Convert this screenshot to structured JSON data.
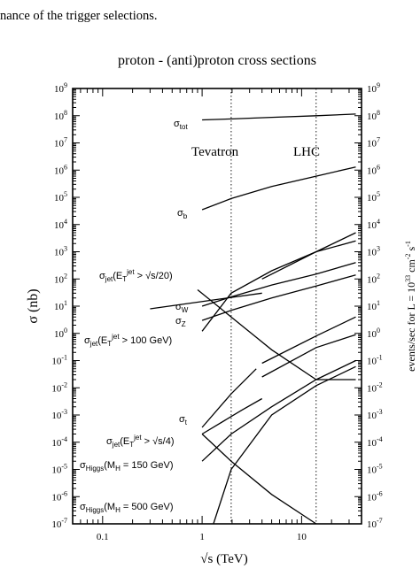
{
  "page_header_fragment": "nance of the trigger selections.",
  "chart_data": {
    "type": "line",
    "title": "proton - (anti)proton cross sections",
    "xlabel": "√s   (TeV)",
    "ylabel_left": "σ  (nb)",
    "ylabel_right": "events/sec  for  L = 10",
    "ylabel_right_exp": "33",
    "ylabel_right_unit": " cm",
    "ylabel_right_unit_exp": "-2",
    "ylabel_right_unit2": " s",
    "ylabel_right_unit2_exp": "-1",
    "x_scale": "log",
    "y_scale": "log",
    "xlim": [
      0.05,
      40
    ],
    "ylim_left": [
      1e-07,
      1000000000.0
    ],
    "ylim_right": [
      1e-07,
      1000000000.0
    ],
    "x_ticks": [
      {
        "value": 0.1,
        "label": "0.1"
      },
      {
        "value": 1,
        "label": "1"
      },
      {
        "value": 10,
        "label": "10"
      }
    ],
    "y_tick_exponents": [
      -7,
      -6,
      -5,
      -4,
      -3,
      -2,
      -1,
      0,
      1,
      2,
      3,
      4,
      5,
      6,
      7,
      8,
      9
    ],
    "y_tick_base": "10",
    "vertical_markers": [
      {
        "label": "Tevatron",
        "x": 1.96
      },
      {
        "label": "LHC",
        "x": 14
      }
    ],
    "series": [
      {
        "name": "σtot",
        "points": [
          [
            1.0,
            70000000.0
          ],
          [
            2.0,
            76000000.0
          ],
          [
            5.0,
            87000000.0
          ],
          [
            14,
            100000000.0
          ],
          [
            35,
            115000000.0
          ]
        ]
      },
      {
        "name": "σb",
        "points": [
          [
            1.0,
            35000.0
          ],
          [
            1.96,
            90000.0
          ],
          [
            5.0,
            250000.0
          ],
          [
            14,
            600000.0
          ],
          [
            35,
            1300000.0
          ]
        ]
      },
      {
        "name": "σjet(ETjet > √s/20)",
        "segments": [
          [
            [
              0.3,
              8
            ],
            [
              4.0,
              30
            ]
          ],
          [
            [
              4.0,
              100
            ],
            [
              14,
              1000.0
            ],
            [
              35,
              5000.0
            ]
          ]
        ]
      },
      {
        "name": "σW",
        "points": [
          [
            1.0,
            10
          ],
          [
            1.96,
            22
          ],
          [
            5.0,
            60
          ],
          [
            14,
            150
          ],
          [
            35,
            400
          ]
        ]
      },
      {
        "name": "σZ",
        "points": [
          [
            1.0,
            3
          ],
          [
            1.96,
            7
          ],
          [
            5.0,
            20
          ],
          [
            14,
            55
          ],
          [
            35,
            140
          ]
        ]
      },
      {
        "name": "σjet(ETjet > 100 GeV)",
        "points": [
          [
            1.0,
            1.2
          ],
          [
            1.96,
            30
          ],
          [
            5.0,
            200
          ],
          [
            14,
            1000
          ],
          [
            35,
            2500
          ]
        ]
      },
      {
        "name": "σt",
        "segments": [
          [
            [
              1.0,
              0.00035
            ],
            [
              1.96,
              0.006
            ],
            [
              3.5,
              0.05
            ]
          ],
          [
            [
              4.0,
              0.08
            ],
            [
              14,
              0.8
            ],
            [
              35,
              4
            ]
          ]
        ]
      },
      {
        "name": "σjet(ETjet > √s/4)",
        "points": [
          [
            1.0,
            2e-05
          ],
          [
            1.96,
            0.0002
          ],
          [
            5.0,
            0.002
          ],
          [
            14,
            0.02
          ],
          [
            35,
            0.1
          ]
        ]
      },
      {
        "name": "σHiggs(MH = 150 GeV)",
        "segments": [
          [
            [
              1.0,
              0.0002
            ],
            [
              2.5,
              0.0015
            ],
            [
              4.0,
              0.004
            ]
          ],
          [
            [
              4.0,
              0.025
            ],
            [
              14,
              0.3
            ],
            [
              35,
              0.9
            ]
          ]
        ]
      },
      {
        "name": "σHiggs(MH = 500 GeV)",
        "points": [
          [
            1.3,
            1e-07
          ],
          [
            1.96,
            1e-05
          ],
          [
            5.0,
            0.001
          ],
          [
            14,
            0.012
          ],
          [
            35,
            0.06
          ]
        ]
      },
      {
        "name": "",
        "points": [
          [
            1.0,
            0.0002
          ],
          [
            1.96,
            2e-05
          ],
          [
            5.0,
            1.2e-06
          ],
          [
            14,
            1e-07
          ]
        ]
      },
      {
        "name": "",
        "points": [
          [
            0.9,
            40
          ],
          [
            1.96,
            4
          ],
          [
            5.0,
            0.25
          ],
          [
            14,
            0.02
          ],
          [
            35,
            0.02
          ]
        ]
      }
    ],
    "annotations": [
      {
        "text": "σtot"
      },
      {
        "text": "Tevatron"
      },
      {
        "text": "LHC"
      },
      {
        "text": "σb"
      },
      {
        "text": "σjet(ETjet > √s/20)"
      },
      {
        "text": "σW"
      },
      {
        "text": "σZ"
      },
      {
        "text": "σjet(ETjet > 100 GeV)"
      },
      {
        "text": "σt"
      },
      {
        "text": "σjet(ETjet > √s/4)"
      },
      {
        "text": "σHiggs(MH = 150 GeV)"
      },
      {
        "text": "σHiggs(MH = 500 GeV)"
      }
    ],
    "grid": false,
    "legend": "none"
  }
}
